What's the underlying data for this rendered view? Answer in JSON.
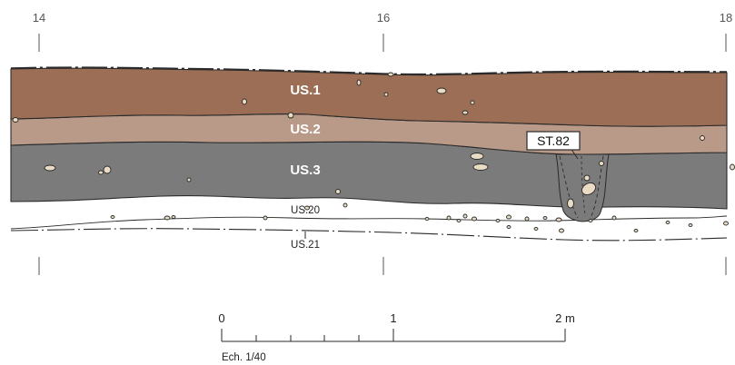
{
  "section": {
    "grid_labels": [
      "14",
      "16",
      "18"
    ],
    "layers": {
      "us1": {
        "label": "US.1",
        "color": "#9b6e55"
      },
      "us2": {
        "label": "US.2",
        "color": "#b99a89"
      },
      "us3": {
        "label": "US.3",
        "color": "#7b7b7b"
      }
    },
    "us20_label": "US.20",
    "us21_label": "US.21",
    "feature": {
      "label": "ST.82",
      "fill": "#7b7b7b"
    },
    "stone_color": "#eadcc4",
    "outline_color": "#2a2a2a"
  },
  "scale": {
    "tick_labels": [
      "0",
      "1",
      "2 m"
    ],
    "ratio_label": "Ech. 1/40"
  }
}
